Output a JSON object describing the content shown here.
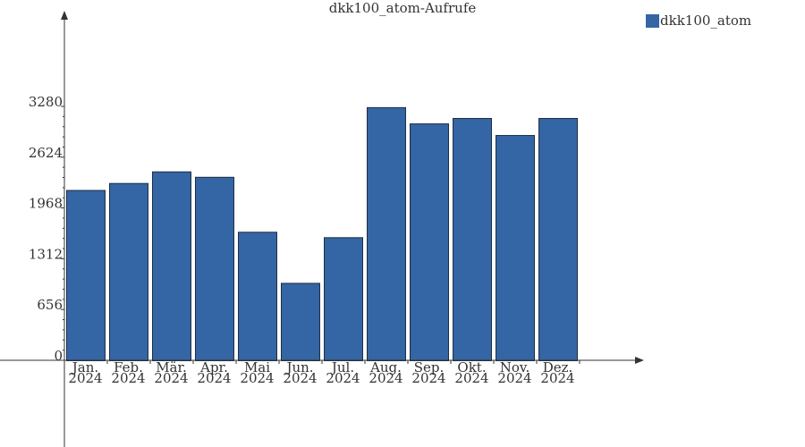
{
  "chart_data": {
    "type": "bar",
    "title": "dkk100_atom-Aufrufe",
    "xlabel": "",
    "ylabel": "",
    "categories": [
      [
        "Jan.",
        "2024"
      ],
      [
        "Feb.",
        "2024"
      ],
      [
        "Mär.",
        "2024"
      ],
      [
        "Apr.",
        "2024"
      ],
      [
        "Mai",
        "2024"
      ],
      [
        "Jun.",
        "2024"
      ],
      [
        "Jul.",
        "2024"
      ],
      [
        "Aug.",
        "2024"
      ],
      [
        "Sep.",
        "2024"
      ],
      [
        "Okt.",
        "2024"
      ],
      [
        "Nov.",
        "2024"
      ],
      [
        "Dez.",
        "2024"
      ]
    ],
    "series": [
      {
        "name": "dkk100_atom",
        "color": "#3465a4",
        "values": [
          2200,
          2290,
          2440,
          2370,
          1660,
          1000,
          1590,
          3270,
          3060,
          3130,
          2910,
          3130
        ]
      }
    ],
    "ylim": [
      0,
      3280
    ],
    "yticks": [
      "0",
      "656",
      "1312",
      "1968",
      "2624",
      "3280"
    ],
    "legend_position": "top-right",
    "grid": false
  }
}
